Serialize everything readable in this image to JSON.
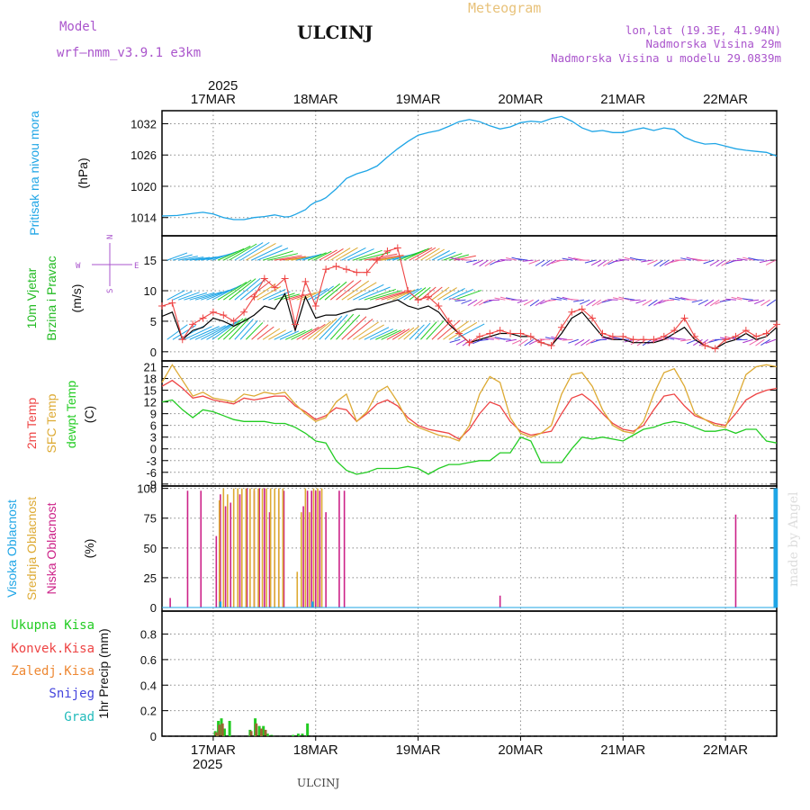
{
  "header": {
    "model_label": "Model",
    "model_name": "wrf—nmm_v3.9.1 e3km",
    "title": "ULCINJ",
    "subtitle": "Meteogram",
    "lonlat": "lon,lat (19.3E, 41.94N)",
    "elevation": "Nadmorska Visina 29m",
    "model_elevation": "Nadmorska Visina u modelu 29.0839m",
    "year_top": "2025",
    "year_bottom": "2025",
    "footer_title": "ULCINJ",
    "credit": "made by Angel"
  },
  "colors": {
    "pressure": "#1ea5e6",
    "wind_label": "#22bb22",
    "wind_dir": "#9933cc",
    "temp2m": "#ee4444",
    "sfc": "#ddaa33",
    "dewpt": "#22cc22",
    "high_cloud": "#1ea5e6",
    "mid_cloud": "#ddaa33",
    "low_cloud": "#cc2288",
    "total_rain": "#22cc22",
    "conv_rain": "#ee4444",
    "frz_rain": "#ee8833",
    "snow": "#4444dd",
    "graupel": "#22bbbb"
  },
  "chart_data": [
    {
      "type": "line",
      "panel": "pressure",
      "ylabel": "Pritisak na nivou mora",
      "unit": "(hPa)",
      "yticks": [
        "1014",
        "1020",
        "1026",
        "1032"
      ],
      "ylim": [
        1010.5,
        1034.5
      ],
      "x_days": [
        "17MAR",
        "18MAR",
        "19MAR",
        "20MAR",
        "21MAR",
        "22MAR"
      ],
      "xlim": [
        -0.5,
        5.5
      ],
      "series": [
        {
          "x": [
            -0.5,
            -0.35,
            -0.2,
            -0.1,
            0.0,
            0.1,
            0.2,
            0.3,
            0.4,
            0.5,
            0.6,
            0.7,
            0.75,
            0.8,
            0.9,
            0.95,
            1.0,
            1.05,
            1.1,
            1.2,
            1.3,
            1.4,
            1.5,
            1.6,
            1.7,
            1.8,
            1.9,
            2.0,
            2.1,
            2.2,
            2.3,
            2.4,
            2.5,
            2.6,
            2.7,
            2.8,
            2.9,
            3.0,
            3.1,
            3.2,
            3.3,
            3.4,
            3.5,
            3.6,
            3.7,
            3.8,
            3.9,
            4.0,
            4.1,
            4.2,
            4.3,
            4.4,
            4.5,
            4.6,
            4.7,
            4.8,
            4.9,
            5.0,
            5.1,
            5.2,
            5.3,
            5.4,
            5.5
          ],
          "values": [
            1014.3,
            1014.4,
            1014.8,
            1015.0,
            1014.7,
            1014.0,
            1013.6,
            1013.6,
            1014.0,
            1014.2,
            1014.5,
            1014.1,
            1014.2,
            1014.6,
            1015.5,
            1016.4,
            1017.0,
            1017.3,
            1017.8,
            1019.5,
            1021.5,
            1022.4,
            1023.0,
            1023.9,
            1025.6,
            1027.2,
            1028.6,
            1029.8,
            1030.3,
            1030.7,
            1031.5,
            1032.4,
            1032.8,
            1032.4,
            1031.6,
            1031.0,
            1031.4,
            1032.2,
            1032.5,
            1032.3,
            1033.0,
            1033.4,
            1032.5,
            1031.2,
            1030.5,
            1030.7,
            1030.3,
            1030.3,
            1030.8,
            1031.2,
            1030.7,
            1031.2,
            1030.9,
            1029.4,
            1028.6,
            1028.1,
            1028.2,
            1027.7,
            1027.2,
            1026.9,
            1026.7,
            1026.5,
            1025.8
          ]
        }
      ]
    },
    {
      "type": "line",
      "panel": "wind",
      "ylabel": "10m Vjetar Brzina i Pravac",
      "unit": "(m/s)",
      "yticks": [
        "0",
        "5",
        "10",
        "15"
      ],
      "ylim": [
        -1.5,
        19
      ],
      "compass": {
        "n": "N",
        "s": "S",
        "e": "E",
        "w": "W"
      },
      "series": [
        {
          "name": "wind_speed",
          "x": [
            -0.5,
            -0.4,
            -0.3,
            -0.2,
            -0.1,
            0.0,
            0.1,
            0.2,
            0.3,
            0.4,
            0.5,
            0.6,
            0.7,
            0.8,
            0.9,
            1.0,
            1.1,
            1.2,
            1.3,
            1.4,
            1.5,
            1.6,
            1.7,
            1.8,
            1.9,
            2.0,
            2.1,
            2.2,
            2.3,
            2.4,
            2.5,
            2.6,
            2.7,
            2.8,
            2.9,
            3.0,
            3.1,
            3.2,
            3.3,
            3.4,
            3.5,
            3.6,
            3.7,
            3.8,
            3.9,
            4.0,
            4.1,
            4.2,
            4.3,
            4.4,
            4.5,
            4.6,
            4.7,
            4.8,
            4.9,
            5.0,
            5.1,
            5.2,
            5.3,
            5.4,
            5.5
          ],
          "values": [
            5.8,
            6.5,
            2.0,
            3.5,
            4.0,
            5.5,
            5.0,
            4.2,
            5.0,
            6.0,
            7.5,
            7.0,
            9.5,
            3.5,
            9.0,
            5.5,
            6.0,
            6.0,
            6.5,
            7.0,
            7.0,
            7.5,
            8.0,
            8.5,
            7.5,
            7.0,
            7.5,
            6.5,
            4.5,
            3.0,
            1.5,
            2.0,
            2.5,
            3.0,
            3.0,
            2.5,
            2.5,
            1.5,
            1.0,
            3.0,
            5.5,
            6.5,
            4.5,
            2.5,
            2.0,
            2.0,
            1.5,
            1.5,
            1.5,
            2.0,
            3.0,
            4.0,
            2.0,
            1.0,
            0.5,
            1.5,
            2.0,
            3.0,
            2.0,
            2.5,
            4.0
          ]
        },
        {
          "name": "wind_gust",
          "x": [
            -0.5,
            -0.4,
            -0.3,
            -0.2,
            -0.1,
            0.0,
            0.1,
            0.2,
            0.3,
            0.4,
            0.5,
            0.6,
            0.7,
            0.8,
            0.9,
            1.0,
            1.1,
            1.2,
            1.3,
            1.4,
            1.5,
            1.6,
            1.7,
            1.8,
            1.9,
            2.0,
            2.1,
            2.2,
            2.3,
            2.4,
            2.5,
            2.6,
            2.7,
            2.8,
            2.9,
            3.0,
            3.1,
            3.2,
            3.3,
            3.4,
            3.5,
            3.6,
            3.7,
            3.8,
            3.9,
            4.0,
            4.1,
            4.2,
            4.3,
            4.4,
            4.5,
            4.6,
            4.7,
            4.8,
            4.9,
            5.0,
            5.1,
            5.2,
            5.3,
            5.4,
            5.5
          ],
          "values": [
            7.5,
            8.0,
            2.0,
            4.5,
            5.5,
            6.5,
            6.0,
            5.0,
            6.5,
            9.0,
            12.0,
            10.5,
            12.0,
            4.5,
            11.5,
            7.5,
            13.5,
            14.0,
            13.5,
            13.0,
            13.0,
            15.0,
            16.5,
            17.0,
            10.0,
            8.5,
            9.0,
            7.5,
            5.0,
            3.0,
            1.5,
            2.5,
            3.0,
            3.5,
            3.0,
            3.0,
            2.5,
            1.5,
            1.0,
            4.0,
            6.5,
            7.0,
            5.5,
            3.0,
            2.5,
            2.5,
            2.0,
            2.0,
            2.0,
            2.5,
            3.5,
            5.5,
            2.5,
            1.0,
            0.5,
            2.0,
            2.5,
            3.5,
            2.5,
            3.0,
            4.5
          ]
        }
      ]
    },
    {
      "type": "line",
      "panel": "temperature",
      "ylabel": "2m Temp / SFC Temp / dewpt Temp",
      "series_labels": [
        "2m Temp",
        "SFC Temp",
        "dewpt Temp"
      ],
      "unit": "(C)",
      "yticks": [
        "-9",
        "-6",
        "-3",
        "0",
        "3",
        "6",
        "9",
        "12",
        "15",
        "18",
        "21"
      ],
      "ylim": [
        -9.5,
        22.5
      ],
      "series": [
        {
          "name": "2m Temp",
          "x": [
            -0.5,
            -0.4,
            -0.3,
            -0.2,
            -0.1,
            0.0,
            0.1,
            0.2,
            0.3,
            0.4,
            0.5,
            0.6,
            0.7,
            0.8,
            0.9,
            1.0,
            1.1,
            1.2,
            1.3,
            1.4,
            1.5,
            1.6,
            1.7,
            1.8,
            1.9,
            2.0,
            2.1,
            2.2,
            2.3,
            2.4,
            2.5,
            2.6,
            2.7,
            2.8,
            2.9,
            3.0,
            3.1,
            3.2,
            3.3,
            3.4,
            3.5,
            3.6,
            3.7,
            3.8,
            3.9,
            4.0,
            4.1,
            4.2,
            4.3,
            4.4,
            4.5,
            4.6,
            4.7,
            4.8,
            4.9,
            5.0,
            5.1,
            5.2,
            5.3,
            5.4,
            5.5
          ],
          "values": [
            16.0,
            17.5,
            15.5,
            13.0,
            13.5,
            12.5,
            12.0,
            11.5,
            13.0,
            12.5,
            13.0,
            13.5,
            13.5,
            11.0,
            9.5,
            7.5,
            8.5,
            10.5,
            10.0,
            7.0,
            9.0,
            11.5,
            12.5,
            11.0,
            8.0,
            6.0,
            5.0,
            4.5,
            4.0,
            2.5,
            5.0,
            9.0,
            12.0,
            11.0,
            7.0,
            4.5,
            3.5,
            4.0,
            4.5,
            9.0,
            13.0,
            14.0,
            12.0,
            9.0,
            6.5,
            5.0,
            4.5,
            6.0,
            10.0,
            13.5,
            14.0,
            11.0,
            8.5,
            7.5,
            6.5,
            6.0,
            9.0,
            12.5,
            14.0,
            15.0,
            15.5
          ]
        },
        {
          "name": "SFC Temp",
          "x": [
            -0.5,
            -0.4,
            -0.3,
            -0.2,
            -0.1,
            0.0,
            0.1,
            0.2,
            0.3,
            0.4,
            0.5,
            0.6,
            0.7,
            0.8,
            0.9,
            1.0,
            1.1,
            1.2,
            1.3,
            1.4,
            1.5,
            1.6,
            1.7,
            1.8,
            1.9,
            2.0,
            2.1,
            2.2,
            2.3,
            2.4,
            2.5,
            2.6,
            2.7,
            2.8,
            2.9,
            3.0,
            3.1,
            3.2,
            3.3,
            3.4,
            3.5,
            3.6,
            3.7,
            3.8,
            3.9,
            4.0,
            4.1,
            4.2,
            4.3,
            4.4,
            4.5,
            4.6,
            4.7,
            4.8,
            4.9,
            5.0,
            5.1,
            5.2,
            5.3,
            5.4,
            5.5
          ],
          "values": [
            17.0,
            21.5,
            17.5,
            13.5,
            14.5,
            13.0,
            12.5,
            12.0,
            14.0,
            13.5,
            14.5,
            14.0,
            14.5,
            11.5,
            9.0,
            7.0,
            8.0,
            12.0,
            14.0,
            7.0,
            9.5,
            14.5,
            16.0,
            12.0,
            7.0,
            5.5,
            4.5,
            3.5,
            3.0,
            2.0,
            6.0,
            14.0,
            18.5,
            17.0,
            8.0,
            4.0,
            3.0,
            4.0,
            6.0,
            14.0,
            19.0,
            19.5,
            16.0,
            10.0,
            6.0,
            4.5,
            4.0,
            7.0,
            14.0,
            19.5,
            20.5,
            16.0,
            9.0,
            7.5,
            6.0,
            5.5,
            12.0,
            19.0,
            21.0,
            21.5,
            21.0
          ]
        },
        {
          "name": "dewpt Temp",
          "x": [
            -0.5,
            -0.4,
            -0.3,
            -0.2,
            -0.1,
            0.0,
            0.1,
            0.2,
            0.3,
            0.4,
            0.5,
            0.6,
            0.7,
            0.8,
            0.9,
            1.0,
            1.1,
            1.2,
            1.3,
            1.4,
            1.5,
            1.6,
            1.7,
            1.8,
            1.9,
            2.0,
            2.1,
            2.2,
            2.3,
            2.4,
            2.5,
            2.6,
            2.7,
            2.8,
            2.9,
            3.0,
            3.1,
            3.2,
            3.3,
            3.4,
            3.5,
            3.6,
            3.7,
            3.8,
            3.9,
            4.0,
            4.1,
            4.2,
            4.3,
            4.4,
            4.5,
            4.6,
            4.7,
            4.8,
            4.9,
            5.0,
            5.1,
            5.2,
            5.3,
            5.4,
            5.5
          ],
          "values": [
            12.0,
            12.5,
            10.0,
            8.0,
            10.0,
            9.5,
            8.5,
            7.5,
            7.0,
            7.0,
            7.0,
            6.5,
            6.5,
            5.5,
            4.0,
            2.0,
            1.5,
            -3.0,
            -5.5,
            -6.5,
            -6.0,
            -5.0,
            -5.0,
            -5.0,
            -4.5,
            -5.0,
            -6.5,
            -5.0,
            -4.0,
            -4.0,
            -3.5,
            -3.0,
            -3.0,
            -1.0,
            -1.0,
            3.0,
            2.0,
            -3.5,
            -3.5,
            -3.5,
            0.0,
            3.0,
            2.5,
            3.0,
            2.5,
            2.0,
            3.5,
            5.0,
            5.5,
            6.5,
            7.0,
            6.5,
            5.5,
            4.5,
            4.5,
            5.0,
            4.0,
            5.0,
            5.0,
            2.0,
            1.5
          ]
        }
      ]
    },
    {
      "type": "bar",
      "panel": "clouds",
      "ylabel": "Visoka Oblacnost / Srednja Oblacnost / Niska Oblacnost",
      "series_labels": [
        "Visoka Oblacnost",
        "Srednja Oblacnost",
        "Niska Oblacnost"
      ],
      "unit": "(%)",
      "yticks": [
        "0",
        "25",
        "50",
        "75",
        "100"
      ],
      "ylim": [
        -3,
        102
      ],
      "series": [
        {
          "name": "Niska Oblacnost",
          "x": [
            -0.42,
            -0.25,
            -0.12,
            0.03,
            0.07,
            0.12,
            0.17,
            0.26,
            0.33,
            0.4,
            0.45,
            0.5,
            0.55,
            0.6,
            0.64,
            0.69,
            0.88,
            0.92,
            0.96,
            1.0,
            1.04,
            1.1,
            1.23,
            1.28,
            2.8,
            5.1
          ],
          "values": [
            8,
            98,
            98,
            60,
            95,
            85,
            88,
            95,
            100,
            98,
            100,
            100,
            80,
            40,
            98,
            98,
            85,
            98,
            98,
            98,
            98,
            80,
            98,
            98,
            10,
            78
          ]
        },
        {
          "name": "Srednja Oblacnost",
          "x": [
            0.06,
            0.1,
            0.14,
            0.2,
            0.24,
            0.28,
            0.32,
            0.36,
            0.4,
            0.44,
            0.48,
            0.52,
            0.56,
            0.6,
            0.64,
            0.68,
            0.82,
            0.86,
            0.9,
            0.94,
            0.98,
            1.02,
            1.06
          ],
          "values": [
            90,
            100,
            95,
            100,
            100,
            100,
            100,
            100,
            100,
            100,
            100,
            100,
            100,
            100,
            100,
            100,
            30,
            80,
            100,
            80,
            100,
            100,
            100
          ]
        },
        {
          "name": "Visoka Oblacnost",
          "x": [
            0.07,
            0.97,
            5.48,
            5.49,
            5.5
          ],
          "values": [
            5,
            5,
            100,
            100,
            100
          ]
        }
      ]
    },
    {
      "type": "bar",
      "panel": "precip",
      "ylabel": "1hr Precip (mm)",
      "series_labels": [
        "Ukupna Kisa",
        "Konvek.Kisa",
        "Zaledj.Kisa",
        "Snijeg",
        "Grad"
      ],
      "yticks": [
        "0",
        "0.2",
        "0.4",
        "0.6",
        "0.8"
      ],
      "ylim": [
        0,
        0.98
      ],
      "series": [
        {
          "name": "Ukupna Kisa",
          "x": [
            0.02,
            0.05,
            0.08,
            0.11,
            0.16,
            0.36,
            0.41,
            0.45,
            0.49,
            0.53,
            0.57,
            0.78,
            0.83,
            0.87,
            0.92
          ],
          "values": [
            0.04,
            0.12,
            0.14,
            0.06,
            0.12,
            0.05,
            0.14,
            0.08,
            0.08,
            0.02,
            0.01,
            0.01,
            0.02,
            0.02,
            0.1
          ]
        },
        {
          "name": "Konvek.Kisa",
          "x": [
            0.03,
            0.06,
            0.09,
            0.37,
            0.42,
            0.47,
            0.51
          ],
          "values": [
            0.03,
            0.09,
            0.1,
            0.04,
            0.1,
            0.06,
            0.05
          ]
        }
      ]
    }
  ]
}
